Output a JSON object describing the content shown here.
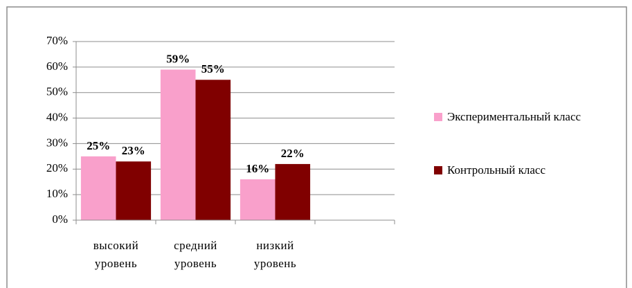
{
  "chart_data": {
    "type": "bar",
    "categories": [
      "высокий уровень",
      "средний уровень",
      "низкий уровень",
      null
    ],
    "series": [
      {
        "name": "Экспериментальный класс",
        "color": "#f9a0cb",
        "values": [
          25,
          59,
          16,
          null
        ],
        "value_labels": [
          "25%",
          "59%",
          "16%",
          null
        ]
      },
      {
        "name": "Контрольный класс",
        "color": "#800000",
        "values": [
          23,
          55,
          22,
          null
        ],
        "value_labels": [
          "23%",
          "55%",
          "22%",
          null
        ]
      }
    ],
    "ylim": [
      0,
      70
    ],
    "yticks": [
      {
        "value": 0,
        "label": "0%"
      },
      {
        "value": 10,
        "label": "10%"
      },
      {
        "value": 20,
        "label": "20%"
      },
      {
        "value": 30,
        "label": "30%"
      },
      {
        "value": 40,
        "label": "40%"
      },
      {
        "value": 50,
        "label": "50%"
      },
      {
        "value": 60,
        "label": "60%"
      },
      {
        "value": 70,
        "label": "70%"
      }
    ],
    "grid": true,
    "legend": "right"
  }
}
